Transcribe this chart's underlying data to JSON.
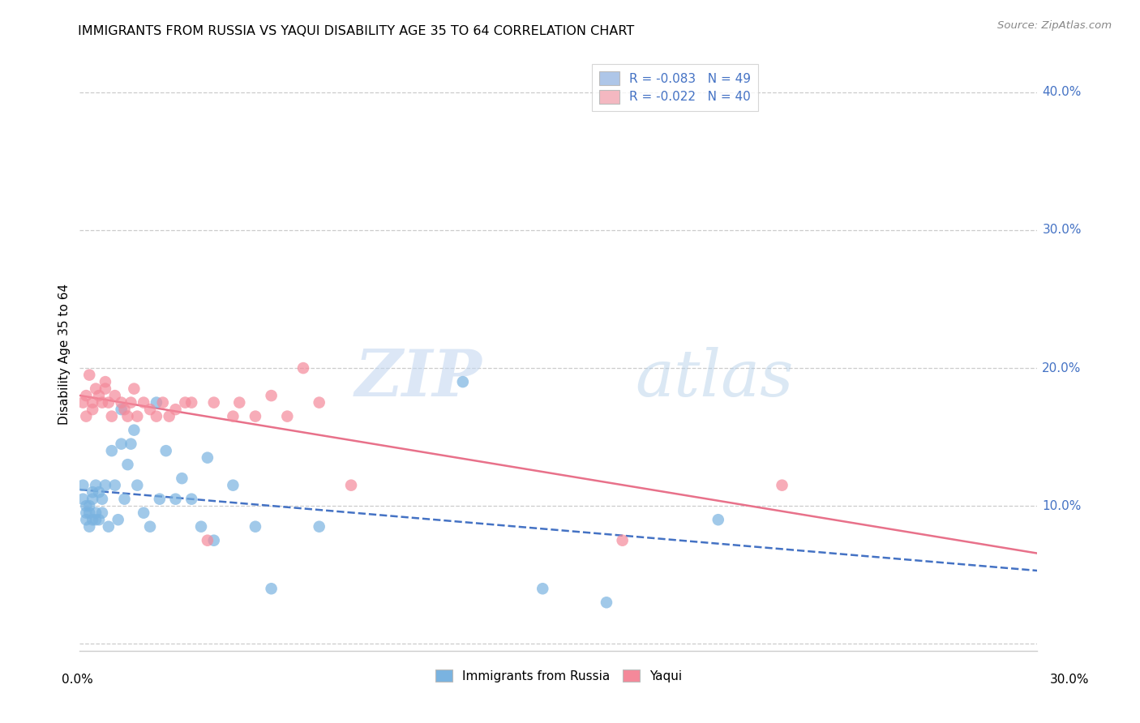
{
  "title": "IMMIGRANTS FROM RUSSIA VS YAQUI DISABILITY AGE 35 TO 64 CORRELATION CHART",
  "source": "Source: ZipAtlas.com",
  "ylabel": "Disability Age 35 to 64",
  "ytick_values": [
    0.0,
    0.1,
    0.2,
    0.3,
    0.4
  ],
  "ytick_labels": [
    "",
    "10.0%",
    "20.0%",
    "30.0%",
    "40.0%"
  ],
  "xlim": [
    0.0,
    0.3
  ],
  "ylim": [
    -0.005,
    0.425
  ],
  "legend_entries": [
    {
      "label": "R = -0.083   N = 49",
      "color": "#aec6e8"
    },
    {
      "label": "R = -0.022   N = 40",
      "color": "#f4b8c1"
    }
  ],
  "legend_bottom": [
    "Immigrants from Russia",
    "Yaqui"
  ],
  "russia_color": "#7ab3e0",
  "yaqui_color": "#f4899a",
  "russia_trend_color": "#4472c4",
  "yaqui_trend_color": "#e8718a",
  "russia_x": [
    0.001,
    0.001,
    0.002,
    0.002,
    0.002,
    0.003,
    0.003,
    0.003,
    0.004,
    0.004,
    0.004,
    0.005,
    0.005,
    0.005,
    0.006,
    0.006,
    0.007,
    0.007,
    0.008,
    0.009,
    0.01,
    0.011,
    0.012,
    0.013,
    0.013,
    0.014,
    0.015,
    0.016,
    0.017,
    0.018,
    0.02,
    0.022,
    0.024,
    0.025,
    0.027,
    0.03,
    0.032,
    0.035,
    0.038,
    0.04,
    0.042,
    0.048,
    0.055,
    0.06,
    0.075,
    0.12,
    0.145,
    0.165,
    0.2
  ],
  "russia_y": [
    0.115,
    0.105,
    0.095,
    0.1,
    0.09,
    0.085,
    0.1,
    0.095,
    0.09,
    0.11,
    0.105,
    0.09,
    0.095,
    0.115,
    0.09,
    0.11,
    0.105,
    0.095,
    0.115,
    0.085,
    0.14,
    0.115,
    0.09,
    0.145,
    0.17,
    0.105,
    0.13,
    0.145,
    0.155,
    0.115,
    0.095,
    0.085,
    0.175,
    0.105,
    0.14,
    0.105,
    0.12,
    0.105,
    0.085,
    0.135,
    0.075,
    0.115,
    0.085,
    0.04,
    0.085,
    0.19,
    0.04,
    0.03,
    0.09
  ],
  "yaqui_x": [
    0.001,
    0.002,
    0.002,
    0.003,
    0.004,
    0.004,
    0.005,
    0.006,
    0.007,
    0.008,
    0.008,
    0.009,
    0.01,
    0.011,
    0.013,
    0.014,
    0.015,
    0.016,
    0.017,
    0.018,
    0.02,
    0.022,
    0.024,
    0.026,
    0.028,
    0.03,
    0.033,
    0.035,
    0.04,
    0.042,
    0.048,
    0.05,
    0.055,
    0.06,
    0.065,
    0.07,
    0.075,
    0.085,
    0.17,
    0.22
  ],
  "yaqui_y": [
    0.175,
    0.18,
    0.165,
    0.195,
    0.175,
    0.17,
    0.185,
    0.18,
    0.175,
    0.19,
    0.185,
    0.175,
    0.165,
    0.18,
    0.175,
    0.17,
    0.165,
    0.175,
    0.185,
    0.165,
    0.175,
    0.17,
    0.165,
    0.175,
    0.165,
    0.17,
    0.175,
    0.175,
    0.075,
    0.175,
    0.165,
    0.175,
    0.165,
    0.18,
    0.165,
    0.2,
    0.175,
    0.115,
    0.075,
    0.115
  ],
  "watermark_zip": "ZIP",
  "watermark_atlas": "atlas",
  "background_color": "#ffffff",
  "grid_color": "#cccccc",
  "grid_style": "--",
  "title_fontsize": 11.5,
  "axis_label_color": "#4472c4",
  "marker_size": 110
}
